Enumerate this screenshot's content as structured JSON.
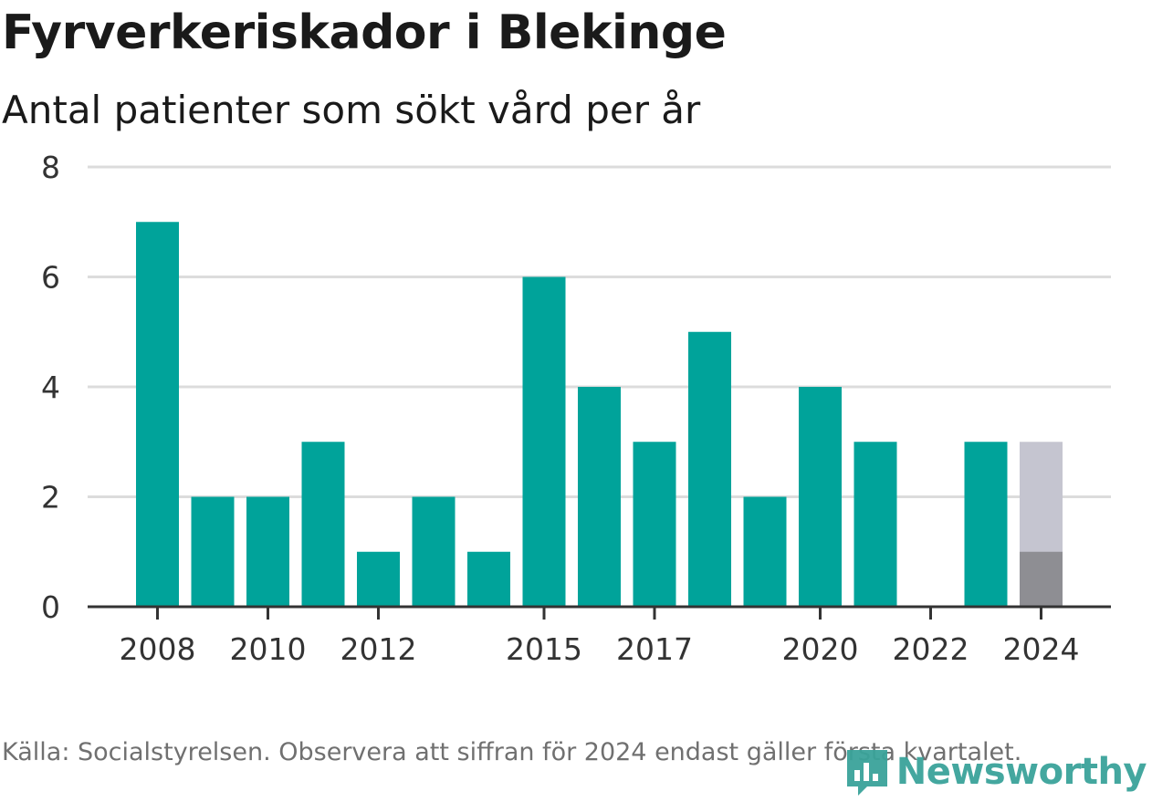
{
  "header": {
    "title": "Fyrverkeriskador i Blekinge",
    "subtitle": "Antal patienter som sökt vård per år"
  },
  "footer": {
    "source": "Källa: Socialstyrelsen. Observera att siffran för 2024 endast gäller första kvartalet.",
    "logo_text": "Newsworthy",
    "logo_icon": "newsworthy-logo-icon"
  },
  "colors": {
    "bar": "#00a39a",
    "partial_full": "#c5c5d0",
    "partial_actual": "#8e8e93",
    "grid": "#dcdcdc",
    "axis": "#333333"
  },
  "chart_data": {
    "type": "bar",
    "title": "Fyrverkeriskador i Blekinge",
    "subtitle": "Antal patienter som sökt vård per år",
    "categories": [
      "2008",
      "2009",
      "2010",
      "2011",
      "2012",
      "2013",
      "2014",
      "2015",
      "2016",
      "2017",
      "2018",
      "2019",
      "2020",
      "2021",
      "2022",
      "2023",
      "2024"
    ],
    "values": [
      7,
      2,
      2,
      3,
      1,
      2,
      1,
      6,
      4,
      3,
      5,
      2,
      4,
      3,
      0,
      3,
      1
    ],
    "highlight": {
      "category": "2024",
      "value": 1,
      "full_bar_value": 3
    },
    "x_tick_labels": [
      "2008",
      "2010",
      "2012",
      "2015",
      "2017",
      "2020",
      "2022",
      "2024"
    ],
    "y_ticks": [
      0,
      2,
      4,
      6,
      8
    ],
    "ylim": [
      0,
      8
    ],
    "grid": true,
    "xlabel": "",
    "ylabel": ""
  }
}
